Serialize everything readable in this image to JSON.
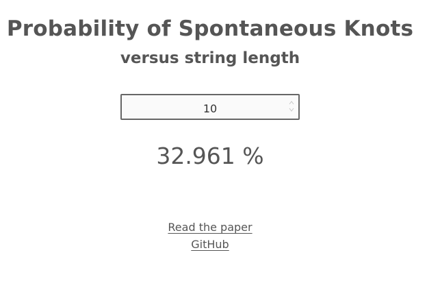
{
  "header": {
    "title": "Probability of Spontaneous Knots",
    "subtitle": "versus string length"
  },
  "controls": {
    "string_length_value": "10"
  },
  "result": {
    "probability_text": "32.961 %"
  },
  "links": {
    "paper_label": "Read the paper",
    "github_label": "GitHub"
  },
  "icons": {
    "spinner_up": "chevron-up-icon",
    "spinner_down": "chevron-down-icon"
  },
  "colors": {
    "text": "#555555",
    "input_border": "#666666",
    "background": "#ffffff"
  }
}
